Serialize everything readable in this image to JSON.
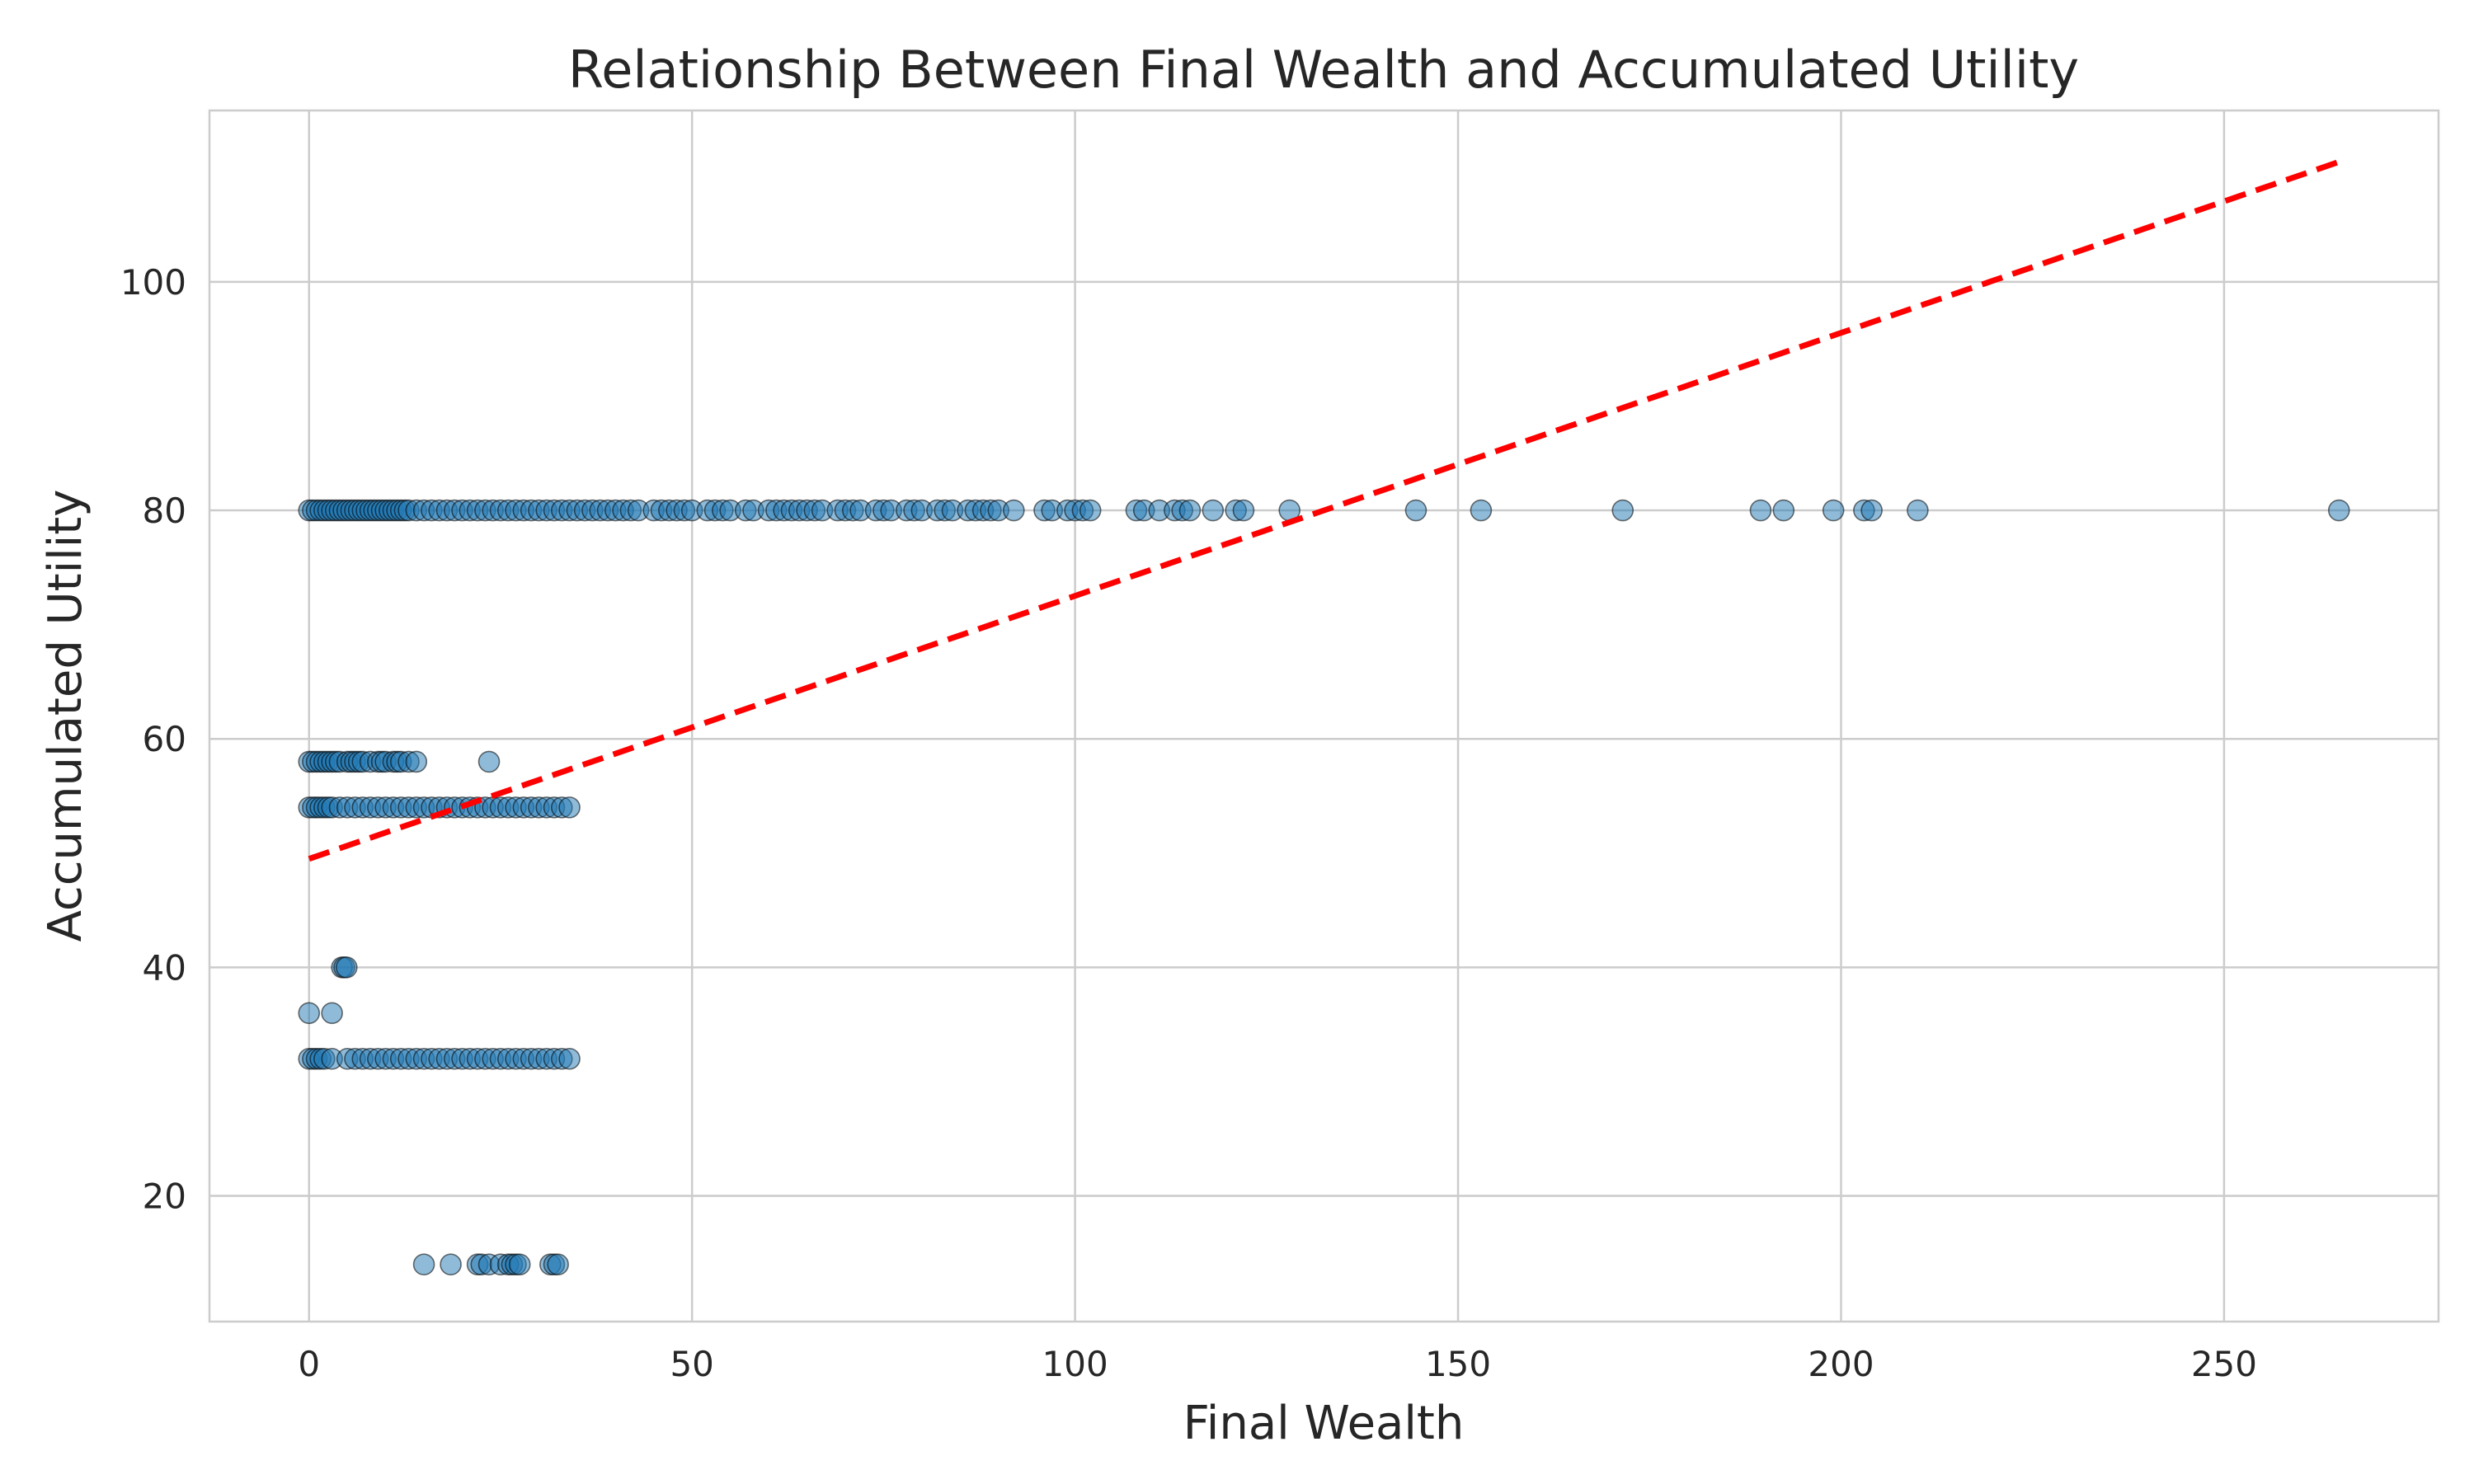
{
  "chart_data": {
    "type": "scatter",
    "title": "Relationship Between Final Wealth and Accumulated Utility",
    "xlabel": "Final Wealth",
    "ylabel": "Accumulated Utility",
    "xlim": [
      -13,
      278
    ],
    "ylim": [
      9,
      115
    ],
    "x_ticks": [
      0,
      50,
      100,
      150,
      200,
      250
    ],
    "y_ticks": [
      20,
      40,
      60,
      80,
      100
    ],
    "grid": true,
    "legend": "none",
    "colors": {
      "points": "#1f77b4",
      "trend": "#ff0000",
      "grid": "#cccccc",
      "text": "#262626"
    },
    "trend_line": {
      "style": "dashed",
      "x": [
        0,
        265
      ],
      "y": [
        49.5,
        110.5
      ]
    },
    "series": [
      {
        "y": 80,
        "x": [
          0,
          0.5,
          1,
          1.5,
          2,
          2.5,
          3,
          3.5,
          4,
          4.5,
          5,
          5.5,
          6,
          6.5,
          7,
          7.5,
          8,
          8.5,
          9,
          9.5,
          10,
          10.5,
          11,
          11.5,
          12,
          12.5,
          13,
          14,
          15,
          16,
          17,
          18,
          19,
          20,
          21,
          22,
          23,
          24,
          25,
          26,
          27,
          28,
          29,
          30,
          31,
          32,
          33,
          34,
          35,
          36,
          37,
          38,
          39,
          40,
          41,
          42,
          43,
          45,
          46,
          47,
          48,
          49,
          50,
          52,
          53,
          54,
          55,
          57,
          58,
          60,
          61,
          62,
          63,
          64,
          65,
          66,
          67,
          69,
          70,
          71,
          72,
          74,
          75,
          76,
          78,
          79,
          80,
          82,
          83,
          84,
          86,
          87,
          88,
          89,
          90,
          92,
          96,
          97,
          99,
          100,
          101,
          102,
          108,
          109,
          111,
          113,
          114,
          115,
          118,
          121,
          122,
          128,
          144.5,
          153,
          171.5,
          189.5,
          192.5,
          199,
          203,
          204,
          210,
          265
        ]
      },
      {
        "y": 58,
        "x": [
          0,
          0.5,
          1,
          1.5,
          2,
          2.5,
          3,
          3.5,
          4,
          5,
          5.5,
          6,
          6.5,
          7,
          8,
          9,
          9.5,
          10,
          11,
          11.5,
          12,
          13,
          14,
          23.5
        ]
      },
      {
        "y": 54,
        "x": [
          0,
          0.5,
          1,
          1.5,
          2,
          2.5,
          3,
          4,
          5,
          6,
          7,
          8,
          9,
          10,
          11,
          12,
          13,
          14,
          15,
          16,
          17,
          18,
          19,
          20,
          21,
          22,
          23,
          24,
          25,
          26,
          27,
          28,
          29,
          30,
          31,
          32,
          33,
          34
        ]
      },
      {
        "y": 40,
        "x": [
          4.3,
          4.6,
          4.9
        ]
      },
      {
        "y": 36,
        "x": [
          0,
          3
        ]
      },
      {
        "y": 32,
        "x": [
          0,
          0.5,
          1,
          1.5,
          2,
          3,
          5,
          6,
          7,
          8,
          9,
          10,
          11,
          12,
          13,
          14,
          15,
          16,
          17,
          18,
          19,
          20,
          21,
          22,
          23,
          24,
          25,
          26,
          27,
          28,
          29,
          30,
          31,
          32,
          33,
          34
        ]
      },
      {
        "y": 14,
        "x": [
          15,
          18.5,
          22,
          22.5,
          23.5,
          25,
          26,
          26.5,
          27,
          27.5,
          31.5,
          32,
          32.5
        ]
      }
    ]
  }
}
